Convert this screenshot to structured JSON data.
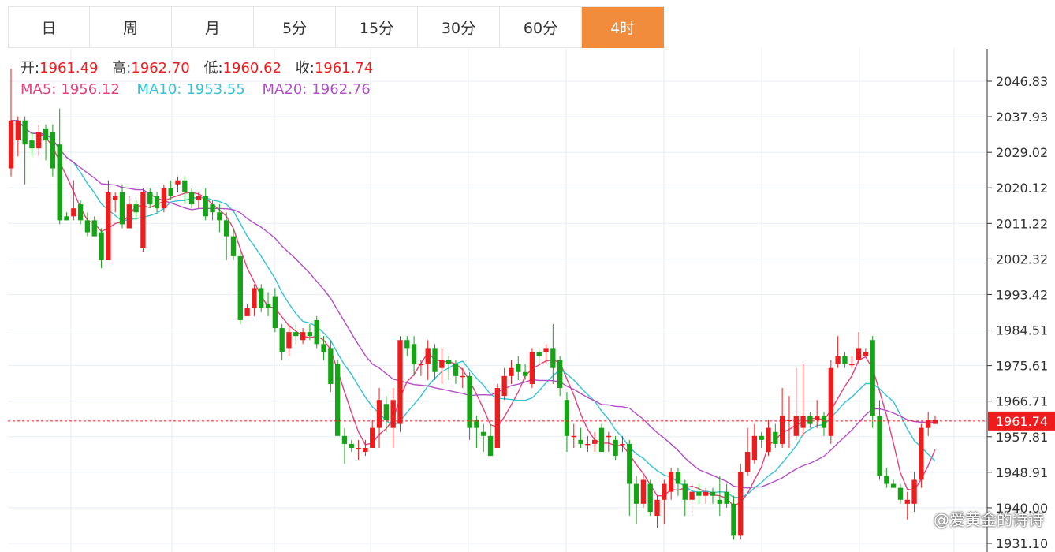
{
  "tabs": [
    "日",
    "周",
    "月",
    "5分",
    "15分",
    "30分",
    "60分",
    "4时"
  ],
  "active_tab": "4时",
  "info": {
    "open_label": "开:",
    "open": "1961.49",
    "high_label": "高:",
    "high": "1962.70",
    "low_label": "低:",
    "low": "1960.62",
    "close_label": "收:",
    "close": "1961.74",
    "ma5_label": "MA5:",
    "ma5": "1956.12",
    "ma10_label": "MA10:",
    "ma10": "1953.55",
    "ma20_label": "MA20:",
    "ma20": "1962.76"
  },
  "current_price_tag": "1961.74",
  "watermark": "@爱黄金的诗诗",
  "colors": {
    "up": "#ee1c1c",
    "down": "#16a316",
    "ma5": "#e8407c",
    "ma10": "#33c3d6",
    "ma20": "#b44ec8",
    "active_tab": "#f08c3c",
    "price_line": "#ee1c1c"
  },
  "chart_data": {
    "type": "candlestick",
    "y_ticks": [
      2046.83,
      2037.93,
      2029.02,
      2020.12,
      2011.22,
      2002.32,
      1993.42,
      1984.51,
      1975.61,
      1966.71,
      1957.81,
      1948.91,
      1940.0,
      1931.1
    ],
    "ylim": [
      1929.4,
      2053.0
    ],
    "current_price": 1961.74,
    "candles": [
      [
        2025,
        2037,
        2050,
        2023
      ],
      [
        2032,
        2037,
        2038,
        2028
      ],
      [
        2037,
        2031,
        2038,
        2021
      ],
      [
        2032,
        2030,
        2034,
        2028
      ],
      [
        2030,
        2034,
        2036,
        2028
      ],
      [
        2035,
        2032,
        2036,
        2027
      ],
      [
        2034,
        2025,
        2036,
        2023
      ],
      [
        2031,
        2012,
        2040,
        2011
      ],
      [
        2013,
        2012,
        2014,
        2012
      ],
      [
        2013,
        2015,
        2022,
        2012
      ],
      [
        2016,
        2012,
        2017,
        2011
      ],
      [
        2012,
        2009,
        2014,
        2008
      ],
      [
        2012,
        2008,
        2013,
        2008
      ],
      [
        2009,
        2002,
        2010,
        2000
      ],
      [
        2002,
        2019,
        2022,
        2002
      ],
      [
        2017,
        2018,
        2019,
        2014
      ],
      [
        2019,
        2011,
        2021,
        2010
      ],
      [
        2010,
        2016,
        2018,
        2010
      ],
      [
        2016,
        2014,
        2017,
        2012
      ],
      [
        2005,
        2019,
        2020,
        2004
      ],
      [
        2019,
        2016,
        2020,
        2015
      ],
      [
        2018,
        2015,
        2019,
        2014
      ],
      [
        2015,
        2020,
        2021,
        2014
      ],
      [
        2020,
        2018,
        2022,
        2017
      ],
      [
        2021,
        2022,
        2023,
        2019
      ],
      [
        2022,
        2019,
        2023,
        2016
      ],
      [
        2019,
        2016,
        2020,
        2015
      ],
      [
        2017,
        2018,
        2019,
        2015
      ],
      [
        2018,
        2013,
        2020,
        2012
      ],
      [
        2016,
        2014,
        2017,
        2012
      ],
      [
        2014,
        2012,
        2016,
        2009
      ],
      [
        2012,
        2008,
        2014,
        2002
      ],
      [
        2008,
        2003,
        2010,
        2002
      ],
      [
        2003,
        1987,
        2004,
        1986
      ],
      [
        1988,
        1990,
        1991,
        1988
      ],
      [
        1990,
        1995,
        1996,
        1988
      ],
      [
        1995,
        1990,
        1996,
        1989
      ],
      [
        1991,
        1990,
        1994,
        1988
      ],
      [
        1993,
        1985,
        1995,
        1984
      ],
      [
        1985,
        1979,
        1986,
        1977
      ],
      [
        1980,
        1984,
        1986,
        1978
      ],
      [
        1984,
        1983,
        1986,
        1981
      ],
      [
        1982,
        1984,
        1985,
        1981
      ],
      [
        1984,
        1983,
        1986,
        1982
      ],
      [
        1987,
        1981,
        1988,
        1980
      ],
      [
        1981,
        1979,
        1983,
        1977
      ],
      [
        1980,
        1971,
        1982,
        1969
      ],
      [
        1976,
        1958,
        1977,
        1958
      ],
      [
        1958,
        1956,
        1960,
        1951
      ],
      [
        1956,
        1955,
        1957,
        1954
      ],
      [
        1955,
        1955,
        1957,
        1952
      ],
      [
        1954,
        1955,
        1957,
        1953
      ],
      [
        1955,
        1960,
        1962,
        1955
      ],
      [
        1960,
        1967,
        1970,
        1955
      ],
      [
        1966,
        1962,
        1968,
        1959
      ],
      [
        1960,
        1967,
        1970,
        1955
      ],
      [
        1961,
        1982,
        1983,
        1959
      ],
      [
        1982,
        1980,
        1983,
        1978
      ],
      [
        1981,
        1976,
        1983,
        1973
      ],
      [
        1976,
        1976,
        1977,
        1973
      ],
      [
        1976,
        1980,
        1982,
        1972
      ],
      [
        1980,
        1974,
        1981,
        1972
      ],
      [
        1975,
        1977,
        1980,
        1971
      ],
      [
        1977,
        1976,
        1978,
        1972
      ],
      [
        1976,
        1973,
        1977,
        1971
      ],
      [
        1973,
        1973,
        1975,
        1970
      ],
      [
        1973,
        1960,
        1974,
        1957
      ],
      [
        1962,
        1960,
        1963,
        1955
      ],
      [
        1959,
        1958,
        1961,
        1954
      ],
      [
        1958,
        1953,
        1961,
        1953
      ],
      [
        1955,
        1970,
        1971,
        1955
      ],
      [
        1968,
        1973,
        1975,
        1967
      ],
      [
        1973,
        1975,
        1977,
        1971
      ],
      [
        1976,
        1974,
        1978,
        1972
      ],
      [
        1974,
        1973,
        1976,
        1972
      ],
      [
        1971,
        1979,
        1980,
        1970
      ],
      [
        1979,
        1978,
        1980,
        1976
      ],
      [
        1979,
        1980,
        1981,
        1976
      ],
      [
        1980,
        1975,
        1986,
        1971
      ],
      [
        1977,
        1970,
        1978,
        1968
      ],
      [
        1967,
        1958,
        1969,
        1954
      ],
      [
        1958,
        1958,
        1961,
        1955
      ],
      [
        1957,
        1956,
        1960,
        1955
      ],
      [
        1956,
        1956,
        1958,
        1954
      ],
      [
        1956,
        1957,
        1959,
        1954
      ],
      [
        1960,
        1954,
        1961,
        1954
      ],
      [
        1958,
        1958,
        1959,
        1954
      ],
      [
        1957,
        1953,
        1958,
        1952
      ],
      [
        1956,
        1956,
        1958,
        1954
      ],
      [
        1956,
        1946,
        1957,
        1938
      ],
      [
        1946,
        1941,
        1948,
        1936
      ],
      [
        1941,
        1947,
        1948,
        1940
      ],
      [
        1946,
        1939,
        1947,
        1938
      ],
      [
        1938,
        1942,
        1943,
        1935
      ],
      [
        1942,
        1946,
        1947,
        1936
      ],
      [
        1944,
        1949,
        1950,
        1942
      ],
      [
        1949,
        1946,
        1950,
        1943
      ],
      [
        1946,
        1942,
        1947,
        1938
      ],
      [
        1942,
        1944,
        1946,
        1938
      ],
      [
        1944,
        1943,
        1946,
        1941
      ],
      [
        1943,
        1944,
        1945,
        1941
      ],
      [
        1944,
        1943,
        1945,
        1941
      ],
      [
        1942,
        1941,
        1948,
        1938
      ],
      [
        1944,
        1941,
        1946,
        1940
      ],
      [
        1941,
        1933,
        1943,
        1932
      ],
      [
        1933,
        1949,
        1951,
        1932
      ],
      [
        1949,
        1954,
        1960,
        1948
      ],
      [
        1952,
        1958,
        1961,
        1951
      ],
      [
        1958,
        1957,
        1959,
        1955
      ],
      [
        1954,
        1960,
        1962,
        1953
      ],
      [
        1959,
        1956,
        1961,
        1955
      ],
      [
        1956,
        1963,
        1970,
        1955
      ],
      [
        1962,
        1962,
        1968,
        1955
      ],
      [
        1958,
        1963,
        1975,
        1957
      ],
      [
        1960,
        1963,
        1976,
        1958
      ],
      [
        1963,
        1961,
        1964,
        1960
      ],
      [
        1962,
        1963,
        1967,
        1960
      ],
      [
        1963,
        1960,
        1964,
        1958
      ],
      [
        1958,
        1975,
        1977,
        1956
      ],
      [
        1976,
        1978,
        1983,
        1975
      ],
      [
        1978,
        1976,
        1979,
        1975
      ],
      [
        1976,
        1976,
        1978,
        1975
      ],
      [
        1977,
        1980,
        1984,
        1976
      ],
      [
        1978,
        1979,
        1980,
        1978
      ],
      [
        1982,
        1963,
        1983,
        1960
      ],
      [
        1963,
        1948,
        1967,
        1947
      ],
      [
        1948,
        1946,
        1950,
        1945
      ],
      [
        1946,
        1945,
        1947,
        1945
      ],
      [
        1945,
        1942,
        1946,
        1941
      ],
      [
        1941,
        1942,
        1944,
        1937
      ],
      [
        1941,
        1947,
        1949,
        1939
      ],
      [
        1947,
        1960,
        1961,
        1945
      ],
      [
        1960,
        1962,
        1964,
        1958
      ],
      [
        1961,
        1962,
        1963,
        1961
      ]
    ],
    "ma5_last": 1956.12,
    "ma10_last": 1953.55,
    "ma20_last": 1962.76
  }
}
